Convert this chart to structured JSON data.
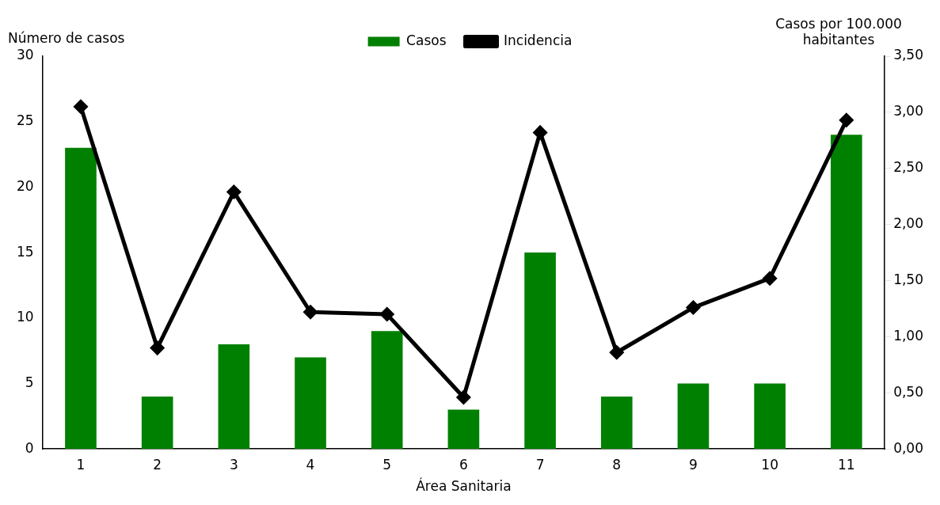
{
  "chart_data": {
    "type": "bar",
    "categories": [
      "1",
      "2",
      "3",
      "4",
      "5",
      "6",
      "7",
      "8",
      "9",
      "10",
      "11"
    ],
    "xlabel": "Área Sanitaria",
    "ylabel": "Número de casos",
    "y2label": "Casos por 100.000 habitantes",
    "ylim": [
      0,
      30
    ],
    "yticks": [
      0,
      5,
      10,
      15,
      20,
      25,
      30
    ],
    "y2lim": [
      0,
      3.5
    ],
    "y2ticks": [
      {
        "value": 0,
        "label": "0,00"
      },
      {
        "value": 0.5,
        "label": "0,50"
      },
      {
        "value": 1,
        "label": "1,00"
      },
      {
        "value": 1.5,
        "label": "1,50"
      },
      {
        "value": 2,
        "label": "2,00"
      },
      {
        "value": 2.5,
        "label": "2,50"
      },
      {
        "value": 3,
        "label": "3,00"
      },
      {
        "value": 3.5,
        "label": "3,50"
      }
    ],
    "grid": false,
    "legend": "top",
    "series": [
      {
        "name": "Casos",
        "color": "#008000",
        "values": [
          23,
          4,
          8,
          7,
          9,
          3,
          15,
          4,
          5,
          5,
          24
        ]
      },
      {
        "name": "Incidencia",
        "type": "line",
        "axis": "y2",
        "color": "#000000",
        "marker": "diamond",
        "line_style": "solid",
        "values": [
          3.05,
          0.9,
          2.29,
          1.22,
          1.2,
          0.46,
          2.82,
          0.86,
          1.26,
          1.52,
          2.93
        ]
      }
    ]
  }
}
